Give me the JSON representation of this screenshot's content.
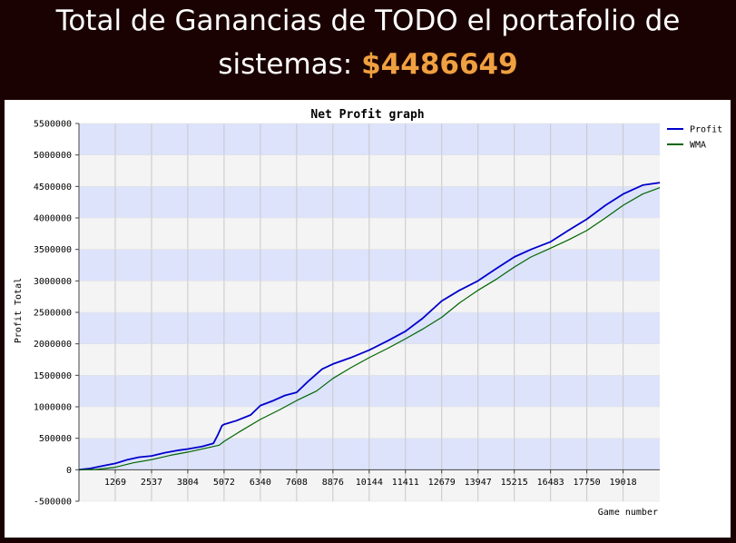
{
  "header": {
    "line1": "Total de Ganancias de TODO el portafolio de",
    "line2_prefix": "sistemas: ",
    "amount": "$4486649"
  },
  "colors": {
    "background": "#1a0202",
    "amount": "#f0a040",
    "profit_line": "#0000cc",
    "wma_line": "#006600",
    "band_blue": "#dde3fb",
    "band_gray": "#f4f4f4"
  },
  "chart_data": {
    "type": "line",
    "title": "Net Profit graph",
    "xlabel": "Game number",
    "ylabel": "Profit Total",
    "xlim": [
      0,
      20300
    ],
    "ylim": [
      -500000,
      5500000
    ],
    "x_ticks": [
      1269,
      2537,
      3804,
      5072,
      6340,
      7608,
      8876,
      10144,
      11411,
      12679,
      13947,
      15215,
      16483,
      17750,
      19018
    ],
    "y_ticks": [
      -500000,
      0,
      500000,
      1000000,
      1500000,
      2000000,
      2500000,
      3000000,
      3500000,
      4000000,
      4500000,
      5000000,
      5500000
    ],
    "grid": true,
    "legend_position": "top-right",
    "series": [
      {
        "name": "Profit",
        "color": "#0000cc",
        "points": [
          [
            0,
            0
          ],
          [
            400,
            20000
          ],
          [
            800,
            60000
          ],
          [
            1269,
            100000
          ],
          [
            1700,
            160000
          ],
          [
            2100,
            200000
          ],
          [
            2537,
            220000
          ],
          [
            3000,
            270000
          ],
          [
            3500,
            310000
          ],
          [
            3804,
            330000
          ],
          [
            4300,
            370000
          ],
          [
            4700,
            420000
          ],
          [
            4850,
            550000
          ],
          [
            5000,
            700000
          ],
          [
            5072,
            720000
          ],
          [
            5500,
            780000
          ],
          [
            6000,
            870000
          ],
          [
            6340,
            1020000
          ],
          [
            6800,
            1100000
          ],
          [
            7200,
            1180000
          ],
          [
            7608,
            1230000
          ],
          [
            8000,
            1400000
          ],
          [
            8500,
            1600000
          ],
          [
            8876,
            1680000
          ],
          [
            9500,
            1780000
          ],
          [
            10144,
            1900000
          ],
          [
            10800,
            2050000
          ],
          [
            11411,
            2200000
          ],
          [
            12000,
            2400000
          ],
          [
            12679,
            2680000
          ],
          [
            13300,
            2850000
          ],
          [
            13947,
            3000000
          ],
          [
            14600,
            3200000
          ],
          [
            15215,
            3380000
          ],
          [
            15800,
            3500000
          ],
          [
            16483,
            3620000
          ],
          [
            17100,
            3800000
          ],
          [
            17750,
            3980000
          ],
          [
            18400,
            4200000
          ],
          [
            19018,
            4380000
          ],
          [
            19700,
            4520000
          ],
          [
            20300,
            4560000
          ]
        ]
      },
      {
        "name": "WMA",
        "color": "#006600",
        "points": [
          [
            0,
            0
          ],
          [
            600,
            5000
          ],
          [
            1269,
            40000
          ],
          [
            1900,
            110000
          ],
          [
            2537,
            160000
          ],
          [
            3200,
            230000
          ],
          [
            3804,
            280000
          ],
          [
            4400,
            340000
          ],
          [
            4900,
            390000
          ],
          [
            5072,
            450000
          ],
          [
            5600,
            600000
          ],
          [
            6340,
            800000
          ],
          [
            7000,
            950000
          ],
          [
            7608,
            1100000
          ],
          [
            8300,
            1250000
          ],
          [
            8876,
            1450000
          ],
          [
            9500,
            1620000
          ],
          [
            10144,
            1780000
          ],
          [
            10800,
            1930000
          ],
          [
            11411,
            2080000
          ],
          [
            12000,
            2230000
          ],
          [
            12679,
            2420000
          ],
          [
            13300,
            2650000
          ],
          [
            13947,
            2850000
          ],
          [
            14600,
            3030000
          ],
          [
            15215,
            3220000
          ],
          [
            15800,
            3380000
          ],
          [
            16483,
            3520000
          ],
          [
            17100,
            3650000
          ],
          [
            17750,
            3800000
          ],
          [
            18400,
            4000000
          ],
          [
            19018,
            4200000
          ],
          [
            19700,
            4380000
          ],
          [
            20300,
            4480000
          ]
        ]
      }
    ]
  }
}
